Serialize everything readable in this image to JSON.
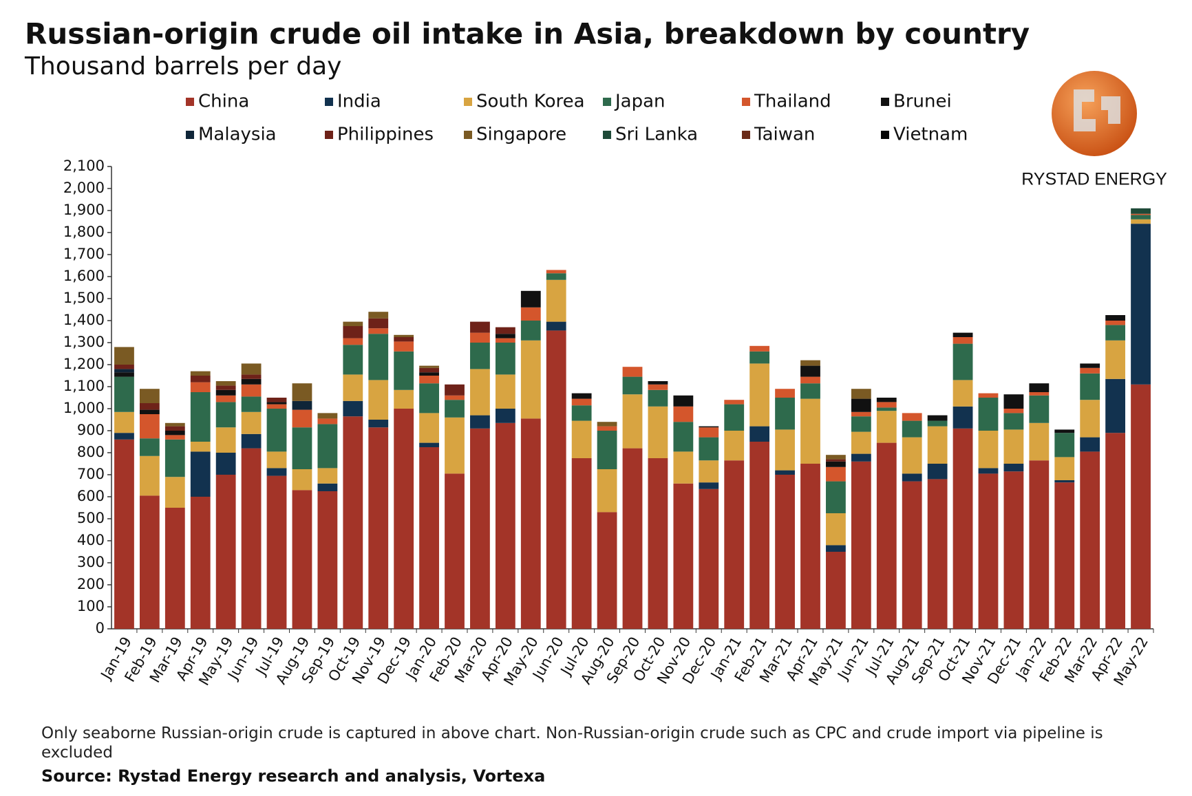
{
  "chart_data": {
    "type": "stacked_bar",
    "title": "Russian-origin crude oil intake in Asia, breakdown by country",
    "subtitle": "Thousand barrels per day",
    "brand": "RYSTAD ENERGY",
    "note": "Only seaborne Russian-origin crude is captured in above chart. Non-Russian-origin crude such as CPC and crude import via pipeline is excluded",
    "source": "Source: Rystad Energy research and analysis,  Vortexa",
    "categories": [
      "Jan-19",
      "Feb-19",
      "Mar-19",
      "Apr-19",
      "May-19",
      "Jun-19",
      "Jul-19",
      "Aug-19",
      "Sep-19",
      "Oct-19",
      "Nov-19",
      "Dec-19",
      "Jan-20",
      "Feb-20",
      "Mar-20",
      "Apr-20",
      "May-20",
      "Jun-20",
      "Jul-20",
      "Aug-20",
      "Sep-20",
      "Oct-20",
      "Nov-20",
      "Dec-20",
      "Jan-21",
      "Feb-21",
      "Mar-21",
      "Apr-21",
      "May-21",
      "Jun-21",
      "Jul-21",
      "Aug-21",
      "Sep-21",
      "Oct-21",
      "Nov-21",
      "Dec-21",
      "Jan-22",
      "Feb-22",
      "Mar-22",
      "Apr-22",
      "May-22"
    ],
    "series": [
      {
        "name": "China",
        "color": "#a33428",
        "values": [
          860,
          605,
          550,
          600,
          700,
          820,
          695,
          630,
          625,
          965,
          915,
          1000,
          825,
          705,
          910,
          935,
          955,
          1355,
          775,
          530,
          820,
          775,
          660,
          635,
          765,
          850,
          700,
          750,
          350,
          760,
          845,
          670,
          680,
          910,
          705,
          715,
          765,
          665,
          805,
          890,
          1110
        ]
      },
      {
        "name": "India",
        "color": "#12324f",
        "values": [
          30,
          0,
          0,
          205,
          100,
          65,
          35,
          0,
          35,
          70,
          35,
          0,
          20,
          0,
          60,
          65,
          0,
          40,
          0,
          0,
          0,
          0,
          0,
          30,
          0,
          70,
          20,
          0,
          30,
          35,
          0,
          35,
          70,
          100,
          25,
          35,
          0,
          10,
          65,
          245,
          730
        ]
      },
      {
        "name": "South Korea",
        "color": "#d8a441",
        "values": [
          95,
          180,
          140,
          45,
          115,
          100,
          75,
          95,
          70,
          120,
          180,
          85,
          135,
          255,
          210,
          155,
          355,
          190,
          170,
          195,
          245,
          235,
          145,
          100,
          135,
          285,
          185,
          295,
          145,
          100,
          145,
          165,
          170,
          120,
          170,
          155,
          170,
          105,
          170,
          175,
          20
        ]
      },
      {
        "name": "Japan",
        "color": "#2e6a4c",
        "values": [
          160,
          80,
          170,
          225,
          115,
          70,
          195,
          190,
          200,
          135,
          210,
          175,
          135,
          80,
          120,
          145,
          90,
          30,
          70,
          175,
          80,
          75,
          135,
          105,
          120,
          55,
          145,
          70,
          145,
          70,
          15,
          75,
          25,
          165,
          150,
          75,
          125,
          110,
          120,
          70,
          20
        ]
      },
      {
        "name": "Thailand",
        "color": "#d4562c",
        "values": [
          0,
          110,
          20,
          45,
          30,
          55,
          20,
          80,
          25,
          30,
          25,
          45,
          35,
          20,
          45,
          20,
          60,
          15,
          30,
          20,
          45,
          25,
          70,
          45,
          20,
          25,
          40,
          30,
          65,
          20,
          25,
          35,
          0,
          30,
          20,
          20,
          15,
          0,
          25,
          20,
          5
        ]
      },
      {
        "name": "Brunei",
        "color": "#111111",
        "values": [
          20,
          20,
          20,
          0,
          25,
          25,
          10,
          0,
          0,
          0,
          0,
          0,
          15,
          0,
          0,
          20,
          75,
          0,
          25,
          0,
          0,
          15,
          50,
          5,
          0,
          0,
          0,
          50,
          25,
          60,
          20,
          0,
          25,
          20,
          0,
          65,
          40,
          15,
          20,
          25,
          0
        ]
      },
      {
        "name": "Malaysia",
        "color": "#0f2538",
        "values": [
          15,
          0,
          0,
          0,
          0,
          0,
          0,
          40,
          0,
          0,
          0,
          0,
          0,
          0,
          0,
          0,
          0,
          0,
          0,
          0,
          0,
          0,
          0,
          0,
          0,
          0,
          0,
          0,
          0,
          0,
          0,
          0,
          0,
          0,
          0,
          0,
          0,
          0,
          0,
          0,
          0
        ]
      },
      {
        "name": "Philippines",
        "color": "#6e2219",
        "values": [
          20,
          30,
          20,
          30,
          20,
          20,
          20,
          0,
          0,
          55,
          45,
          20,
          20,
          50,
          50,
          30,
          0,
          0,
          0,
          0,
          0,
          0,
          0,
          0,
          0,
          0,
          0,
          0,
          10,
          0,
          0,
          0,
          0,
          0,
          0,
          0,
          0,
          0,
          0,
          0,
          0
        ]
      },
      {
        "name": "Singapore",
        "color": "#7a5a23",
        "values": [
          80,
          65,
          15,
          20,
          20,
          50,
          0,
          80,
          25,
          20,
          30,
          10,
          10,
          0,
          0,
          0,
          0,
          0,
          0,
          20,
          0,
          0,
          0,
          0,
          0,
          0,
          0,
          25,
          20,
          45,
          0,
          0,
          0,
          0,
          0,
          0,
          0,
          0,
          0,
          0,
          0
        ]
      },
      {
        "name": "Sri Lanka",
        "color": "#1e4a38",
        "values": [
          0,
          0,
          0,
          0,
          0,
          0,
          0,
          0,
          0,
          0,
          0,
          0,
          0,
          0,
          0,
          0,
          0,
          0,
          0,
          0,
          0,
          0,
          0,
          0,
          0,
          0,
          0,
          0,
          0,
          0,
          0,
          0,
          0,
          0,
          0,
          0,
          0,
          0,
          0,
          0,
          25
        ]
      },
      {
        "name": "Taiwan",
        "color": "#6a2a18",
        "values": [
          0,
          0,
          0,
          0,
          0,
          0,
          0,
          0,
          0,
          0,
          0,
          0,
          0,
          0,
          0,
          0,
          0,
          0,
          0,
          0,
          0,
          0,
          0,
          0,
          0,
          0,
          0,
          0,
          0,
          0,
          0,
          0,
          0,
          0,
          0,
          0,
          0,
          0,
          0,
          0,
          0
        ]
      },
      {
        "name": "Vietnam",
        "color": "#050505",
        "values": [
          0,
          0,
          0,
          0,
          0,
          0,
          0,
          0,
          0,
          0,
          0,
          0,
          0,
          0,
          0,
          0,
          0,
          0,
          0,
          0,
          0,
          0,
          0,
          0,
          0,
          0,
          0,
          0,
          0,
          0,
          0,
          0,
          0,
          0,
          0,
          0,
          0,
          0,
          0,
          0,
          0
        ]
      }
    ],
    "ylim": [
      0,
      2100
    ],
    "yticks": [
      0,
      100,
      200,
      300,
      400,
      500,
      600,
      700,
      800,
      900,
      {
        "value": 1000,
        "label": "1,000"
      },
      {
        "value": 1100,
        "label": "1,100"
      },
      {
        "value": 1200,
        "label": "1,200"
      },
      {
        "value": 1300,
        "label": "1,300"
      },
      {
        "value": 1400,
        "label": "1,400"
      },
      {
        "value": 1500,
        "label": "1,500"
      },
      {
        "value": 1600,
        "label": "1,600"
      },
      {
        "value": 1700,
        "label": "1,700"
      },
      {
        "value": 1800,
        "label": "1,800"
      },
      {
        "value": 1900,
        "label": "1,900"
      },
      {
        "value": 2000,
        "label": "2,000"
      },
      {
        "value": 2100,
        "label": "2,100"
      }
    ],
    "grid": false
  }
}
